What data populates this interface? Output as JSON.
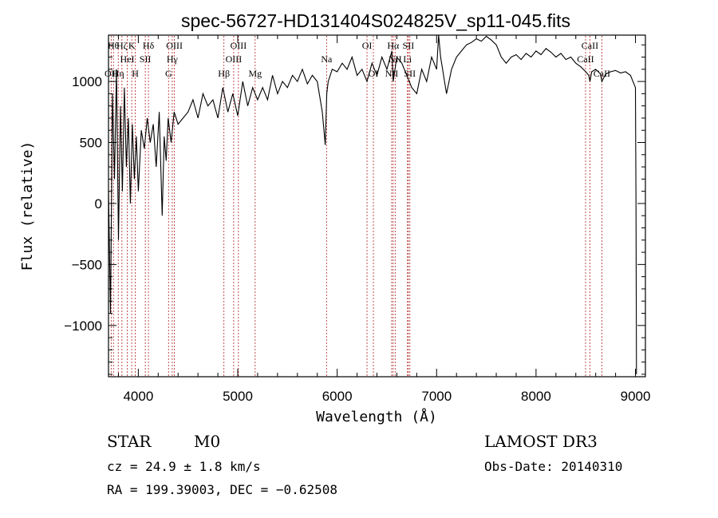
{
  "chart_data": {
    "type": "line",
    "title": "spec-56727-HD131404S024825V_sp11-045.fits",
    "xlabel": "Wavelength (Å)",
    "ylabel": "Flux (relative)",
    "xlim": [
      3700,
      9100
    ],
    "ylim": [
      -1420,
      1380
    ],
    "xticks": [
      4000,
      5000,
      6000,
      7000,
      8000,
      9000
    ],
    "yticks": [
      -1000,
      -500,
      0,
      500,
      1000
    ],
    "xtick_labels": [
      "4000",
      "5000",
      "6000",
      "7000",
      "8000",
      "9000"
    ],
    "ytick_labels": [
      "−1000",
      "−500",
      "0",
      "500",
      "1000"
    ],
    "series": [
      {
        "name": "flux",
        "x": [
          3700,
          3720,
          3740,
          3760,
          3780,
          3800,
          3820,
          3840,
          3860,
          3880,
          3900,
          3920,
          3940,
          3960,
          3980,
          4000,
          4030,
          4060,
          4090,
          4120,
          4150,
          4180,
          4210,
          4240,
          4260,
          4280,
          4300,
          4330,
          4360,
          4400,
          4450,
          4500,
          4550,
          4600,
          4650,
          4700,
          4750,
          4800,
          4850,
          4900,
          4950,
          5000,
          5050,
          5100,
          5150,
          5200,
          5250,
          5300,
          5350,
          5400,
          5450,
          5500,
          5550,
          5600,
          5650,
          5700,
          5750,
          5800,
          5850,
          5880,
          5895,
          5910,
          5950,
          6000,
          6050,
          6100,
          6150,
          6200,
          6250,
          6300,
          6350,
          6400,
          6450,
          6500,
          6550,
          6563,
          6600,
          6650,
          6700,
          6750,
          6800,
          6850,
          6900,
          6950,
          7000,
          7020,
          7040,
          7060,
          7080,
          7100,
          7150,
          7200,
          7250,
          7300,
          7350,
          7400,
          7450,
          7500,
          7550,
          7600,
          7650,
          7700,
          7750,
          7800,
          7850,
          7900,
          7950,
          8000,
          8050,
          8100,
          8150,
          8200,
          8250,
          8300,
          8350,
          8400,
          8450,
          8500,
          8530,
          8542,
          8560,
          8600,
          8650,
          8662,
          8700,
          8750,
          8800,
          8850,
          8900,
          8950,
          9000,
          9005,
          9010
        ],
        "y": [
          100,
          -900,
          900,
          200,
          1100,
          -300,
          800,
          100,
          950,
          300,
          700,
          0,
          650,
          200,
          550,
          100,
          600,
          450,
          700,
          500,
          650,
          300,
          750,
          -100,
          550,
          350,
          700,
          500,
          750,
          650,
          700,
          750,
          850,
          700,
          900,
          800,
          850,
          700,
          950,
          750,
          900,
          720,
          1000,
          800,
          950,
          850,
          950,
          850,
          1050,
          900,
          1000,
          950,
          1050,
          1000,
          1100,
          980,
          1050,
          1000,
          750,
          480,
          900,
          1000,
          1100,
          1080,
          1150,
          1100,
          1200,
          1050,
          1100,
          1000,
          1150,
          1050,
          1200,
          1100,
          1250,
          1000,
          1200,
          1150,
          1050,
          950,
          900,
          1100,
          1000,
          1200,
          1100,
          1400,
          1200,
          1100,
          1000,
          900,
          1100,
          1200,
          1250,
          1300,
          1320,
          1350,
          1330,
          1370,
          1340,
          1300,
          1200,
          1150,
          1200,
          1220,
          1180,
          1230,
          1200,
          1250,
          1220,
          1270,
          1240,
          1200,
          1230,
          1180,
          1200,
          1150,
          1120,
          1080,
          1050,
          1000,
          1080,
          1100,
          1060,
          1000,
          1060,
          1080,
          1090,
          1070,
          1080,
          1050,
          950,
          0,
          -1400
        ]
      }
    ],
    "lines": [
      {
        "x": 3727,
        "label": "OII",
        "row": 3
      },
      {
        "x": 3750,
        "label": "Hθ",
        "row": 1
      },
      {
        "x": 3798,
        "label": "Hη",
        "row": 3
      },
      {
        "x": 3835,
        "label": "Hζ",
        "row": 1
      },
      {
        "x": 3889,
        "label": "HeI",
        "row": 2
      },
      {
        "x": 3934,
        "label": "K",
        "row": 1
      },
      {
        "x": 3969,
        "label": "H",
        "row": 3
      },
      {
        "x": 4070,
        "label": "SII",
        "row": 2
      },
      {
        "x": 4102,
        "label": "Hδ",
        "row": 1
      },
      {
        "x": 4304,
        "label": "G",
        "row": 3
      },
      {
        "x": 4341,
        "label": "Hγ",
        "row": 2
      },
      {
        "x": 4363,
        "label": "OIII",
        "row": 1
      },
      {
        "x": 4861,
        "label": "Hβ",
        "row": 3
      },
      {
        "x": 4959,
        "label": "OIII",
        "row": 2
      },
      {
        "x": 5007,
        "label": "OIII",
        "row": 1
      },
      {
        "x": 5175,
        "label": "Mg",
        "row": 3
      },
      {
        "x": 5893,
        "label": "Na",
        "row": 2
      },
      {
        "x": 6300,
        "label": "OI",
        "row": 1
      },
      {
        "x": 6364,
        "label": "OI",
        "row": 3
      },
      {
        "x": 6548,
        "label": "NII",
        "row": 3
      },
      {
        "x": 6563,
        "label": "Hα",
        "row": 1
      },
      {
        "x": 6583,
        "label": "NII",
        "row": 2
      },
      {
        "x": 6707,
        "label": "Li",
        "row": 2
      },
      {
        "x": 6716,
        "label": "SII",
        "row": 1
      },
      {
        "x": 6731,
        "label": "SII",
        "row": 3
      },
      {
        "x": 8498,
        "label": "CaII",
        "row": 2
      },
      {
        "x": 8542,
        "label": "CaII",
        "row": 1
      },
      {
        "x": 8662,
        "label": "CaII",
        "row": 3
      }
    ]
  },
  "info": {
    "object_class": "STAR",
    "subclass": "M0",
    "survey": "LAMOST DR3",
    "redshift": "cz = 24.9 ± 1.8 km/s",
    "obs_date": "Obs-Date: 20140310",
    "coords": "RA = 199.39003, DEC =  −0.62508"
  },
  "colors": {
    "spectrum": "#000000",
    "line_marker": "#b22222",
    "background": "#ffffff"
  }
}
